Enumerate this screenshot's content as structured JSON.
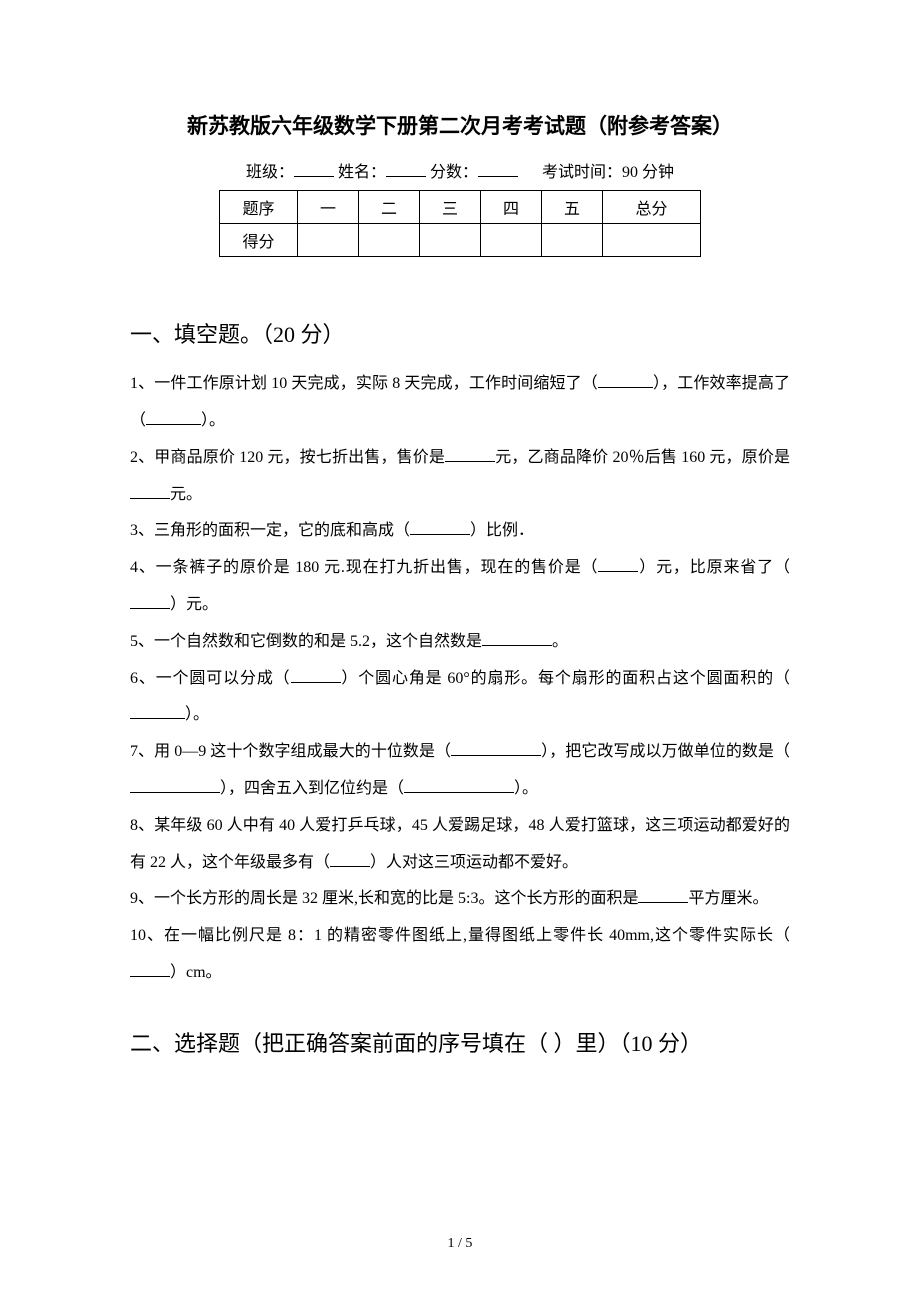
{
  "title": "新苏教版六年级数学下册第二次月考考试题（附参考答案）",
  "info": {
    "class_label": "班级：",
    "name_label": "姓名：",
    "score_label": "分数：",
    "time_label": "考试时间：90 分钟"
  },
  "score_table": {
    "row1": {
      "label": "题序",
      "c1": "一",
      "c2": "二",
      "c3": "三",
      "c4": "四",
      "c5": "五",
      "total": "总分"
    },
    "row2": {
      "label": "得分",
      "c1": "",
      "c2": "",
      "c3": "",
      "c4": "",
      "c5": "",
      "total": ""
    }
  },
  "section1": {
    "heading": "一、填空题。（20 分）",
    "q1a": "1、一件工作原计划 10 天完成，实际 8 天完成，工作时间缩短了（",
    "q1b": "），工作效率提高了（",
    "q1c": "）。",
    "q2a": "2、甲商品原价 120 元，按七折出售，售价是",
    "q2b": "元，乙商品降价 20％后售 160 元，原价是",
    "q2c": "元。",
    "q3a": "3、三角形的面积一定，它的底和高成（",
    "q3b": "）比例．",
    "q4a": "4、一条裤子的原价是 180 元.现在打九折出售，现在的售价是（",
    "q4b": "）元，比原来省了（",
    "q4c": "）元。",
    "q5a": "5、一个自然数和它倒数的和是 5.2，这个自然数是",
    "q5b": "。",
    "q6a": "6、一个圆可以分成（",
    "q6b": "）个圆心角是 60°的扇形。每个扇形的面积占这个圆面积的（",
    "q6c": "）。",
    "q7a": "7、用 0—9 这十个数字组成最大的十位数是（",
    "q7b": "），把它改写成以万做单位的数是（",
    "q7c": "），四舍五入到亿位约是（",
    "q7d": "）。",
    "q8a": "8、某年级 60 人中有 40 人爱打乒乓球，45 人爱踢足球，48 人爱打篮球，这三项运动都爱好的有 22 人，这个年级最多有（",
    "q8b": "）人对这三项运动都不爱好。",
    "q9a": "9、一个长方形的周长是 32 厘米,长和宽的比是 5:3。这个长方形的面积是",
    "q9b": "平方厘米。",
    "q10a": "10、在一幅比例尺是 8：1 的精密零件图纸上,量得图纸上零件长 40mm,这个零件实际长（",
    "q10b": "）cm。"
  },
  "section2": {
    "heading": "二、选择题（把正确答案前面的序号填在（ ）里）（10 分）"
  },
  "page_num": "1 / 5"
}
